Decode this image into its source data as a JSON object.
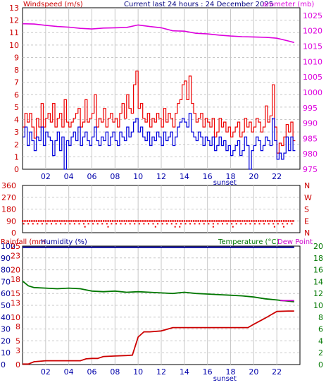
{
  "header": {
    "left_label": "Windspeed (m/s)",
    "center_label": "Current last 24 hours : 24 December 2025",
    "right_label": "arometer (mb)"
  },
  "colors": {
    "axis_left": "#cc0000",
    "axis_right_barometer": "#dd00dd",
    "axis_right_wind_dir": "#cc0000",
    "title": "#000080",
    "wind_gust": "#ee0000",
    "wind_avg": "#0000dd",
    "barometer": "#dd00dd",
    "wind_dir": "#ee0000",
    "rainfall": "#cc0000",
    "humidity": "#000099",
    "temperature": "#007700",
    "dew_point": "#cc00cc",
    "grid": "#c8c8c8",
    "time_axis": "#0000aa"
  },
  "time_axis": {
    "ticks": [
      "02",
      "04",
      "06",
      "08",
      "10",
      "12",
      "14",
      "16",
      "18",
      "20",
      "22"
    ],
    "tick_hours": [
      2,
      4,
      6,
      8,
      10,
      12,
      14,
      16,
      18,
      20,
      22
    ],
    "sunset_label": "sunset",
    "sunset_hour": 17.5
  },
  "chart_data": [
    {
      "type": "line",
      "x_unit": "hour",
      "xlim": [
        0,
        24
      ],
      "left_axis": {
        "title": "Windspeed (m/s)",
        "ticks": [
          0,
          1,
          2,
          3,
          4,
          5,
          6,
          7,
          8,
          9,
          10,
          11,
          12,
          13
        ],
        "ylim": [
          0,
          13
        ]
      },
      "right_axis": {
        "title": "arometer (mb)",
        "ticks": [
          975,
          980,
          985,
          990,
          995,
          1000,
          1005,
          1010,
          1015,
          1020,
          1025
        ],
        "ylim": [
          975,
          1027.5
        ]
      },
      "grid": true,
      "series": [
        {
          "key": "gust",
          "axis": "left",
          "step": true,
          "x": [
            0.0,
            0.2,
            0.4,
            0.6,
            0.8,
            1.0,
            1.2,
            1.4,
            1.6,
            1.8,
            2.0,
            2.2,
            2.4,
            2.6,
            2.8,
            3.0,
            3.2,
            3.4,
            3.6,
            3.8,
            4.0,
            4.2,
            4.4,
            4.6,
            4.8,
            5.0,
            5.2,
            5.4,
            5.6,
            5.8,
            6.0,
            6.2,
            6.4,
            6.6,
            6.8,
            7.0,
            7.2,
            7.4,
            7.6,
            7.8,
            8.0,
            8.2,
            8.4,
            8.6,
            8.8,
            9.0,
            9.2,
            9.4,
            9.6,
            9.8,
            10.0,
            10.2,
            10.4,
            10.6,
            10.8,
            11.0,
            11.2,
            11.4,
            11.6,
            11.8,
            12.0,
            12.2,
            12.4,
            12.6,
            12.8,
            13.0,
            13.2,
            13.4,
            13.6,
            13.8,
            14.0,
            14.2,
            14.4,
            14.6,
            14.8,
            15.0,
            15.2,
            15.4,
            15.6,
            15.8,
            16.0,
            16.2,
            16.4,
            16.6,
            16.8,
            17.0,
            17.2,
            17.4,
            17.6,
            17.8,
            18.0,
            18.2,
            18.4,
            18.6,
            18.8,
            19.0,
            19.2,
            19.4,
            19.6,
            19.8,
            20.0,
            20.2,
            20.4,
            20.6,
            20.8,
            21.0,
            21.2,
            21.4,
            21.6,
            21.8,
            22.0,
            22.2,
            22.4,
            22.6,
            22.8,
            23.0,
            23.2,
            23.4
          ],
          "values": [
            3.4,
            4.5,
            3.8,
            4.5,
            3.4,
            2.5,
            4.1,
            3.4,
            5.3,
            3.4,
            4.1,
            4.5,
            3.8,
            5.3,
            3.4,
            4.1,
            4.5,
            3.4,
            5.6,
            3.8,
            3.4,
            3.8,
            4.1,
            4.5,
            4.9,
            3.4,
            3.8,
            5.6,
            3.8,
            4.1,
            4.5,
            6.0,
            3.4,
            4.1,
            3.8,
            4.9,
            3.4,
            4.1,
            4.5,
            3.8,
            4.1,
            3.4,
            4.5,
            5.3,
            4.1,
            6.0,
            4.9,
            4.5,
            6.8,
            7.9,
            4.9,
            5.3,
            4.1,
            3.8,
            4.5,
            3.4,
            4.1,
            3.8,
            4.5,
            4.1,
            3.4,
            4.9,
            3.8,
            4.5,
            4.1,
            3.4,
            4.5,
            5.3,
            5.6,
            6.8,
            7.1,
            5.6,
            7.5,
            5.3,
            4.5,
            3.8,
            4.1,
            4.5,
            3.4,
            4.1,
            3.8,
            3.4,
            4.1,
            2.6,
            3.0,
            4.1,
            3.4,
            3.8,
            3.0,
            3.4,
            2.6,
            3.0,
            3.4,
            3.8,
            2.6,
            3.0,
            4.1,
            3.4,
            3.8,
            3.0,
            3.4,
            4.1,
            3.8,
            3.0,
            3.4,
            5.1,
            3.8,
            4.3,
            6.8,
            3.4,
            1.3,
            2.1,
            1.9,
            2.6,
            3.6,
            3.0,
            3.8,
            2.3
          ],
          "stroke_color": "#ee0000"
        },
        {
          "key": "average",
          "axis": "left",
          "step": true,
          "x": [
            0.0,
            0.2,
            0.4,
            0.6,
            0.8,
            1.0,
            1.2,
            1.4,
            1.6,
            1.8,
            2.0,
            2.2,
            2.4,
            2.6,
            2.8,
            3.0,
            3.2,
            3.4,
            3.6,
            3.8,
            4.0,
            4.2,
            4.4,
            4.6,
            4.8,
            5.0,
            5.2,
            5.4,
            5.6,
            5.8,
            6.0,
            6.2,
            6.4,
            6.6,
            6.8,
            7.0,
            7.2,
            7.4,
            7.6,
            7.8,
            8.0,
            8.2,
            8.4,
            8.6,
            8.8,
            9.0,
            9.2,
            9.4,
            9.6,
            9.8,
            10.0,
            10.2,
            10.4,
            10.6,
            10.8,
            11.0,
            11.2,
            11.4,
            11.6,
            11.8,
            12.0,
            12.2,
            12.4,
            12.6,
            12.8,
            13.0,
            13.2,
            13.4,
            13.6,
            13.8,
            14.0,
            14.2,
            14.4,
            14.6,
            14.8,
            15.0,
            15.2,
            15.4,
            15.6,
            15.8,
            16.0,
            16.2,
            16.4,
            16.6,
            16.8,
            17.0,
            17.2,
            17.4,
            17.6,
            17.8,
            18.0,
            18.2,
            18.4,
            18.6,
            18.8,
            19.0,
            19.2,
            19.4,
            19.6,
            19.8,
            20.0,
            20.2,
            20.4,
            20.6,
            20.8,
            21.0,
            21.2,
            21.4,
            21.6,
            21.8,
            22.0,
            22.2,
            22.4,
            22.6,
            22.8,
            23.0,
            23.2,
            23.4
          ],
          "values": [
            2.6,
            3.4,
            1.9,
            3.0,
            2.3,
            1.5,
            2.6,
            2.3,
            3.4,
            1.9,
            3.0,
            2.6,
            2.3,
            1.1,
            2.3,
            3.0,
            1.5,
            2.6,
            0.0,
            2.3,
            1.9,
            2.6,
            3.0,
            2.3,
            3.4,
            1.9,
            2.6,
            3.0,
            2.3,
            1.9,
            2.6,
            3.4,
            2.3,
            1.9,
            2.6,
            2.3,
            3.0,
            1.9,
            2.6,
            3.0,
            2.3,
            1.9,
            3.0,
            2.6,
            2.3,
            3.4,
            2.6,
            3.0,
            3.8,
            4.1,
            3.0,
            3.4,
            2.6,
            2.3,
            3.0,
            1.9,
            2.6,
            2.3,
            3.0,
            2.6,
            1.9,
            3.0,
            2.3,
            2.6,
            3.0,
            1.9,
            2.6,
            3.4,
            3.8,
            4.1,
            3.8,
            3.4,
            4.5,
            3.0,
            2.6,
            2.3,
            3.0,
            2.6,
            1.9,
            2.6,
            2.3,
            1.9,
            2.6,
            1.5,
            1.9,
            2.6,
            1.9,
            2.3,
            1.5,
            1.9,
            1.1,
            1.5,
            1.9,
            2.3,
            1.1,
            1.5,
            2.6,
            1.9,
            0.0,
            1.5,
            1.9,
            2.6,
            2.3,
            1.5,
            1.9,
            2.6,
            2.3,
            1.9,
            4.1,
            2.3,
            0.8,
            1.3,
            0.8,
            1.3,
            2.6,
            1.5,
            2.6,
            1.5
          ],
          "stroke_color": "#0000dd"
        },
        {
          "key": "barometer",
          "axis": "right",
          "step": false,
          "x": [
            0,
            1,
            2,
            3,
            4,
            5,
            6,
            7,
            8,
            9,
            10,
            11,
            12,
            13,
            14,
            15,
            16,
            17,
            18,
            19,
            20,
            21,
            22,
            23,
            23.5
          ],
          "values": [
            1022.3,
            1022.2,
            1021.8,
            1021.4,
            1021.2,
            1020.8,
            1020.6,
            1020.9,
            1021.0,
            1021.1,
            1021.9,
            1021.4,
            1021.0,
            1020.0,
            1019.9,
            1019.2,
            1019.0,
            1018.6,
            1018.3,
            1018.1,
            1018.0,
            1017.9,
            1017.6,
            1016.7,
            1016.2
          ],
          "stroke_color": "#dd00dd"
        }
      ]
    },
    {
      "type": "scatter",
      "x_unit": "hour",
      "xlim": [
        0,
        24
      ],
      "left_axis": {
        "ticks": [
          0,
          90,
          180,
          270,
          360
        ],
        "ylim": [
          0,
          360
        ]
      },
      "right_axis": {
        "ticks": [
          "N",
          "E",
          "S",
          "W",
          "N"
        ]
      },
      "grid": true,
      "series": [
        {
          "key": "wind_direction",
          "band_main": 90,
          "band_second": 68,
          "band_low": 45,
          "x_main": [
            0.0,
            0.2,
            0.4,
            0.6,
            0.8,
            1.0,
            1.2,
            1.4,
            1.6,
            1.8,
            2.0,
            2.2,
            2.4,
            2.6,
            2.8,
            3.0,
            3.2,
            3.4,
            3.6,
            3.8,
            4.0,
            4.2,
            4.4,
            4.6,
            4.8,
            5.0,
            5.2,
            5.4,
            5.6,
            5.8,
            6.0,
            6.2,
            6.4,
            6.6,
            6.8,
            7.0,
            7.2,
            7.4,
            7.6,
            7.8,
            8.0,
            8.2,
            8.4,
            8.6,
            8.8,
            9.0,
            9.2,
            9.4,
            9.6,
            9.8,
            10.0,
            10.2,
            10.4,
            10.6,
            10.8,
            11.0,
            11.2,
            11.4,
            11.6,
            11.8,
            12.0,
            12.2,
            12.4,
            12.6,
            12.8,
            13.0,
            13.2,
            13.4,
            13.6,
            13.8,
            14.0,
            14.2,
            14.4,
            14.6,
            14.8,
            15.0,
            15.2,
            15.4,
            15.6,
            15.8,
            16.0,
            16.2,
            16.4,
            16.6,
            16.8,
            17.0,
            17.2,
            17.4,
            17.6,
            17.8,
            18.0,
            18.2,
            18.4,
            18.6,
            18.8,
            19.0,
            19.2,
            19.4,
            19.6,
            19.8,
            20.0,
            20.2,
            20.4,
            20.6,
            20.8,
            21.0,
            21.2,
            21.4,
            21.6,
            21.8,
            22.0,
            22.2,
            22.4,
            22.6,
            22.8,
            23.0,
            23.2,
            23.4
          ],
          "x_second": [
            0.1,
            0.5,
            0.9,
            1.3,
            1.7,
            2.1,
            2.5,
            2.9,
            3.3,
            3.7,
            4.1,
            4.5,
            4.9,
            5.3,
            5.7,
            6.1,
            6.5,
            6.9,
            7.3,
            7.7,
            8.1,
            8.5,
            8.9,
            9.3,
            9.7,
            10.1,
            10.5,
            10.9,
            11.3,
            11.7,
            12.1,
            12.5,
            12.9,
            13.3,
            13.7,
            14.1,
            14.5,
            14.9,
            15.3,
            15.7,
            16.1,
            16.5,
            16.9,
            17.3,
            17.7,
            18.1,
            18.5,
            18.9,
            19.3,
            19.7,
            20.1,
            20.5,
            20.9,
            21.3,
            21.7,
            22.1,
            22.5,
            22.9,
            23.3
          ],
          "x_low": [
            5.4,
            7.4,
            11.5,
            13.2,
            13.6,
            16.5,
            18.2,
            21.8,
            22.6
          ],
          "stroke_color": "#ee0000"
        }
      ]
    },
    {
      "type": "line",
      "x_unit": "hour",
      "xlim": [
        0,
        24
      ],
      "titles": {
        "rainfall": "Rainfall (mm",
        "humidity": "Humidity (%)",
        "temperature": "Temperature (°C)",
        "dew_point": "Dew Point"
      },
      "left_axis_rain": {
        "ticks": [
          0,
          3,
          5,
          8,
          10,
          13,
          15,
          18,
          20,
          23,
          25
        ],
        "ylim": [
          0,
          25
        ]
      },
      "left_axis_humidity": {
        "ticks": [
          0,
          10,
          20,
          30,
          40,
          50,
          60,
          70,
          80,
          90,
          100
        ],
        "ylim": [
          0,
          100
        ]
      },
      "right_axis_temperature": {
        "ticks": [
          0,
          2,
          4,
          6,
          8,
          10,
          12,
          14,
          16,
          18,
          20
        ],
        "ylim": [
          0,
          20
        ]
      },
      "grid": true,
      "series": [
        {
          "key": "rainfall",
          "axis": "rain",
          "x": [
            0,
            0.5,
            1,
            2,
            4,
            5,
            5.5,
            6,
            6.5,
            7,
            8,
            9,
            9.5,
            10,
            10.5,
            11,
            12,
            13,
            14,
            15,
            16,
            17,
            18,
            19,
            19.5,
            20,
            21,
            21.5,
            22,
            23,
            23.5
          ],
          "values": [
            0.1,
            0.1,
            0.6,
            0.8,
            0.8,
            0.8,
            1.2,
            1.3,
            1.3,
            1.7,
            1.8,
            1.9,
            2.0,
            5.8,
            6.9,
            6.9,
            7.1,
            7.8,
            7.8,
            7.8,
            7.8,
            7.8,
            7.8,
            7.8,
            7.8,
            8.5,
            9.8,
            10.5,
            11.2,
            11.3,
            11.3
          ],
          "stroke_color": "#cc0000"
        },
        {
          "key": "humidity",
          "axis": "humidity",
          "x": [
            0,
            23.5
          ],
          "values": [
            99,
            99
          ],
          "stroke_color": "#000099"
        },
        {
          "key": "temperature",
          "axis": "temperature",
          "x": [
            0,
            0.5,
            1,
            2,
            3,
            4,
            5,
            6,
            7,
            8,
            9,
            10,
            11,
            12,
            13,
            14,
            15,
            16,
            17,
            18,
            19,
            20,
            21,
            22,
            22.5,
            23,
            23.5
          ],
          "values": [
            14.1,
            13.3,
            13.0,
            12.9,
            12.8,
            12.9,
            12.8,
            12.4,
            12.3,
            12.4,
            12.2,
            12.3,
            12.2,
            12.1,
            12.0,
            12.2,
            12.0,
            11.9,
            11.8,
            11.7,
            11.6,
            11.4,
            11.1,
            10.9,
            10.8,
            10.7,
            10.6
          ],
          "stroke_color": "#007700"
        },
        {
          "key": "dew_point",
          "axis": "temperature",
          "x": [
            22.3,
            23.5
          ],
          "values": [
            10.8,
            10.8
          ],
          "stroke_color": "#cc00cc"
        }
      ]
    }
  ]
}
